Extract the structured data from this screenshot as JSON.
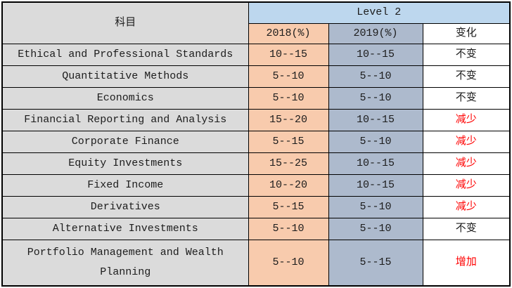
{
  "table": {
    "header": {
      "subject_label": "科目",
      "level_label": "Level 2",
      "col_2018": "2018(%)",
      "col_2019": "2019(%)",
      "change_label": "变化"
    },
    "rows": [
      {
        "subject": "Ethical and Professional Standards",
        "y2018": "10--15",
        "y2019": "10--15",
        "change": "不变",
        "highlight": false
      },
      {
        "subject": "Quantitative Methods",
        "y2018": "5--10",
        "y2019": "5--10",
        "change": "不变",
        "highlight": false
      },
      {
        "subject": "Economics",
        "y2018": "5--10",
        "y2019": "5--10",
        "change": "不变",
        "highlight": false
      },
      {
        "subject": "Financial Reporting and Analysis",
        "y2018": "15--20",
        "y2019": "10--15",
        "change": "减少",
        "highlight": true
      },
      {
        "subject": "Corporate Finance",
        "y2018": "5--15",
        "y2019": "5--10",
        "change": "减少",
        "highlight": true
      },
      {
        "subject": "Equity Investments",
        "y2018": "15--25",
        "y2019": "10--15",
        "change": "减少",
        "highlight": true
      },
      {
        "subject": "Fixed Income",
        "y2018": "10--20",
        "y2019": "10--15",
        "change": "减少",
        "highlight": true
      },
      {
        "subject": "Derivatives",
        "y2018": "5--15",
        "y2019": "5--10",
        "change": "减少",
        "highlight": true
      },
      {
        "subject": "Alternative Investments",
        "y2018": "5--10",
        "y2019": "5--10",
        "change": "不变",
        "highlight": false
      },
      {
        "subject": "Portfolio Management and Wealth Planning",
        "y2018": "5--10",
        "y2019": "5--15",
        "change": "增加",
        "highlight": true
      }
    ],
    "colors": {
      "subject_bg": "#dbdbdb",
      "level_header_bg": "#bdd7ee",
      "col2018_bg": "#f8cbad",
      "col2019_bg": "#adbacd",
      "change_red": "#ff0000",
      "border": "#000000",
      "text": "#1c1c1c"
    }
  },
  "chart_data": {
    "type": "table",
    "title": "CFA Level 2 topic weights 2018 vs 2019",
    "column_group": {
      "label": "Level 2",
      "spans": [
        "2018(%)",
        "2019(%)",
        "变化"
      ]
    },
    "columns": [
      "科目",
      "2018(%)",
      "2019(%)",
      "变化"
    ],
    "rows": [
      [
        "Ethical and Professional Standards",
        "10--15",
        "10--15",
        "不变"
      ],
      [
        "Quantitative Methods",
        "5--10",
        "5--10",
        "不变"
      ],
      [
        "Economics",
        "5--10",
        "5--10",
        "不变"
      ],
      [
        "Financial Reporting and Analysis",
        "15--20",
        "10--15",
        "减少"
      ],
      [
        "Corporate Finance",
        "5--15",
        "5--10",
        "减少"
      ],
      [
        "Equity Investments",
        "15--25",
        "10--15",
        "减少"
      ],
      [
        "Fixed Income",
        "10--20",
        "10--15",
        "减少"
      ],
      [
        "Derivatives",
        "5--15",
        "5--10",
        "减少"
      ],
      [
        "Alternative Investments",
        "5--10",
        "5--10",
        "不变"
      ],
      [
        "Portfolio Management and Wealth Planning",
        "5--10",
        "5--15",
        "增加"
      ]
    ]
  }
}
